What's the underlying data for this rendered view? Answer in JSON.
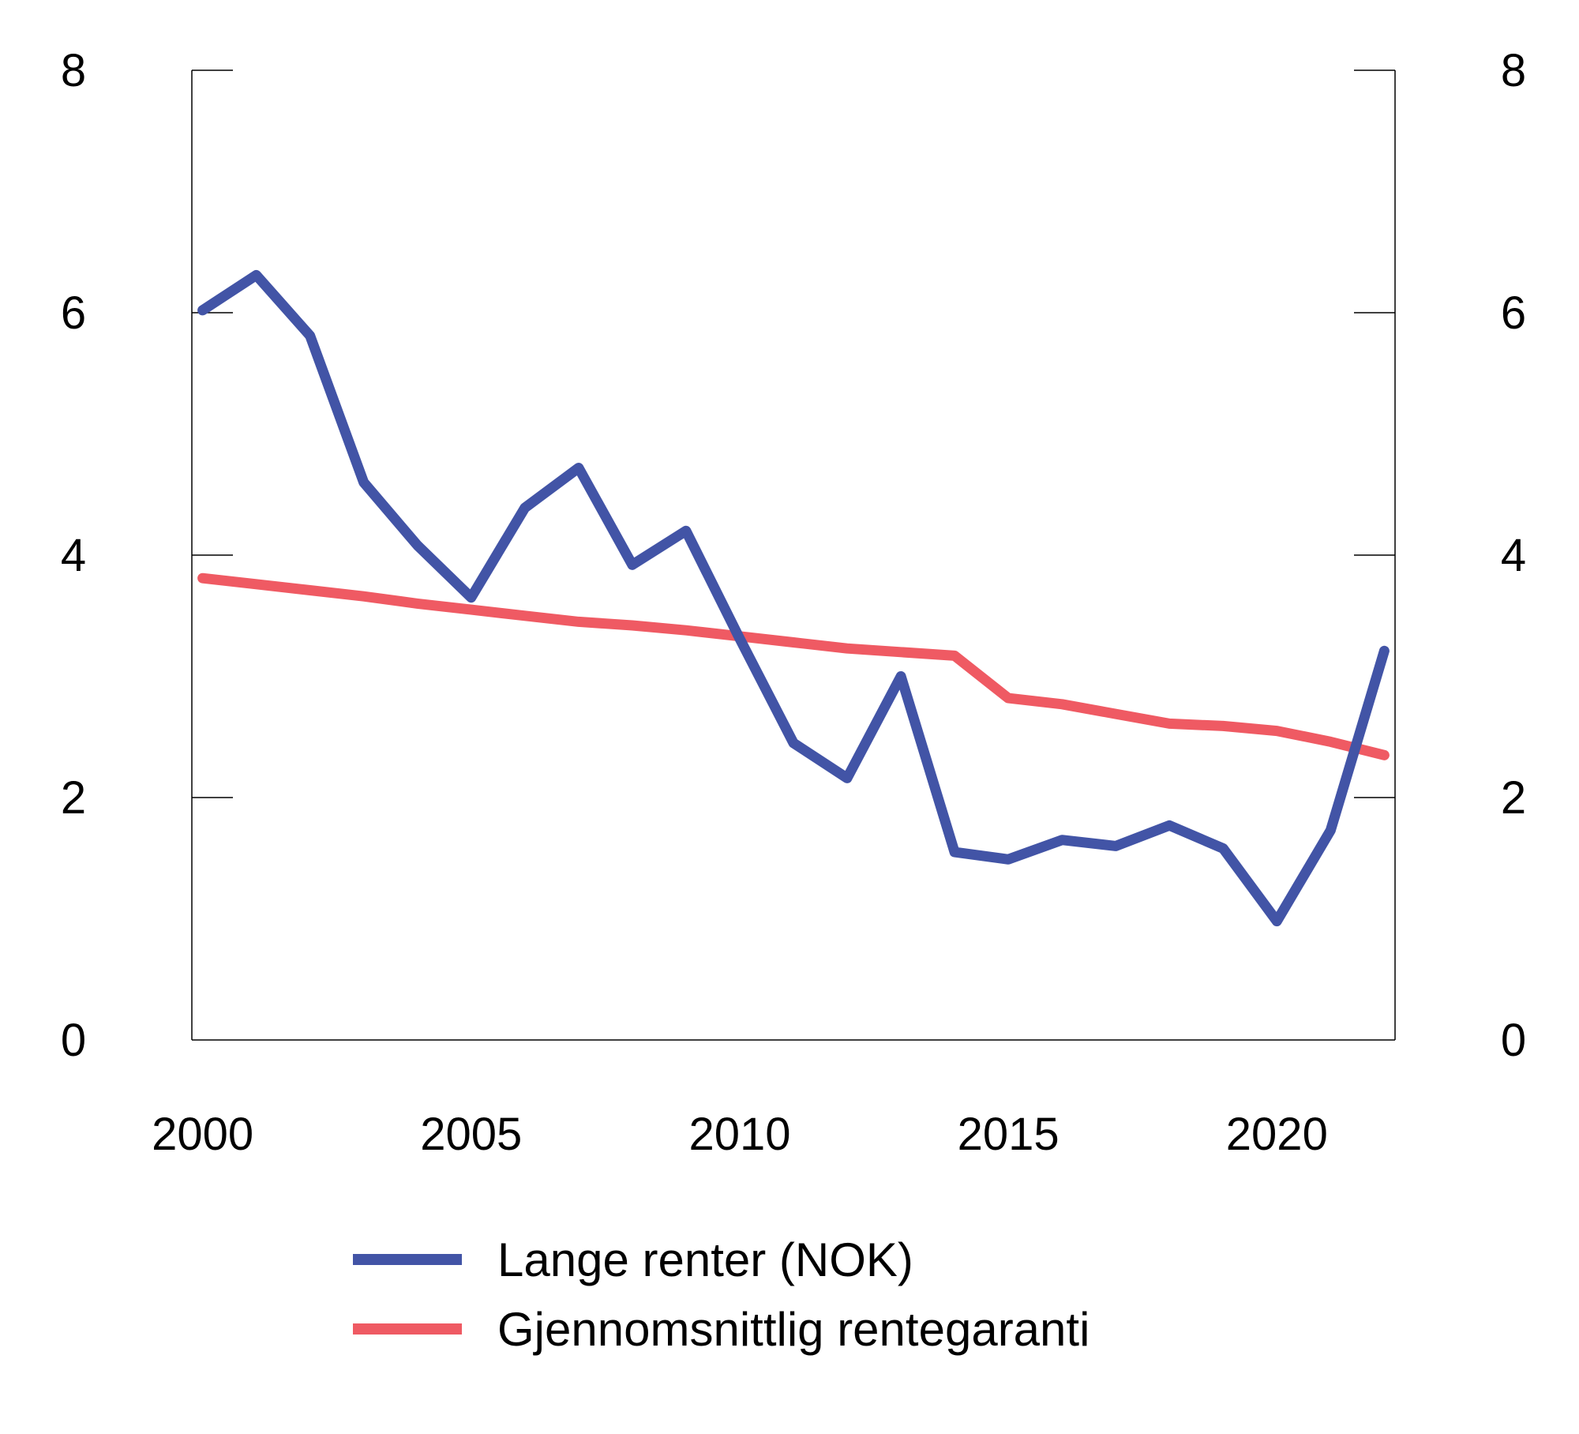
{
  "chart_data": {
    "type": "line",
    "title": "",
    "xlabel": "",
    "ylabel": "",
    "x": [
      2000,
      2001,
      2002,
      2003,
      2004,
      2005,
      2006,
      2007,
      2008,
      2009,
      2010,
      2011,
      2012,
      2013,
      2014,
      2015,
      2016,
      2017,
      2018,
      2019,
      2020,
      2021,
      2022
    ],
    "xlim": [
      1999.8,
      2022.2
    ],
    "ylim": [
      0,
      8
    ],
    "x_ticks": [
      2000,
      2005,
      2010,
      2015,
      2020
    ],
    "y_ticks": [
      0,
      2,
      4,
      6,
      8
    ],
    "x_tick_labels": [
      "2000",
      "2005",
      "2010",
      "2015",
      "2020"
    ],
    "y_tick_labels_left": [
      "0",
      "2",
      "4",
      "6",
      "8"
    ],
    "y_tick_labels_right": [
      "0",
      "2",
      "4",
      "6",
      "8"
    ],
    "grid": false,
    "legend_position": "bottom",
    "series": [
      {
        "name": "Lange renter (NOK)",
        "color": "#4254a6",
        "values": [
          6.02,
          6.31,
          5.81,
          4.6,
          4.08,
          3.65,
          4.39,
          4.72,
          3.92,
          4.2,
          3.31,
          2.45,
          2.16,
          3.0,
          1.55,
          1.49,
          1.65,
          1.6,
          1.77,
          1.58,
          0.98,
          1.73,
          3.21
        ]
      },
      {
        "name": "Gjennomsnittlig rentegaranti",
        "color": "#ef5a63",
        "values": [
          3.81,
          3.76,
          3.71,
          3.66,
          3.6,
          3.55,
          3.5,
          3.45,
          3.42,
          3.38,
          3.33,
          3.28,
          3.23,
          3.2,
          3.17,
          2.82,
          2.77,
          2.69,
          2.61,
          2.59,
          2.55,
          2.46,
          2.35
        ]
      }
    ]
  }
}
